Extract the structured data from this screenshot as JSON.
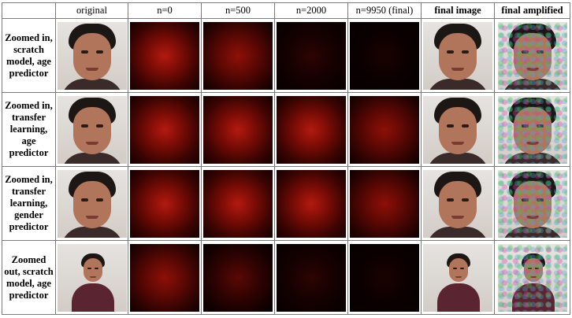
{
  "headers": [
    "original",
    "n=0",
    "n=500",
    "n=2000",
    "n=9950 (final)",
    "final image",
    "final amplified"
  ],
  "rows": [
    {
      "label": "Zoomed in, scratch model, age predictor",
      "heat": [
        4,
        3,
        1,
        0
      ],
      "small": false
    },
    {
      "label": "Zoomed in, transfer learning, age predictor",
      "heat": [
        4,
        4,
        4,
        3
      ],
      "small": false
    },
    {
      "label": "Zoomed in, transfer learning, gender predictor",
      "heat": [
        4,
        4,
        4,
        3
      ],
      "small": false
    },
    {
      "label": "Zoomed out, scratch model, age predictor",
      "heat": [
        3,
        2,
        1,
        0
      ],
      "small": true
    }
  ]
}
